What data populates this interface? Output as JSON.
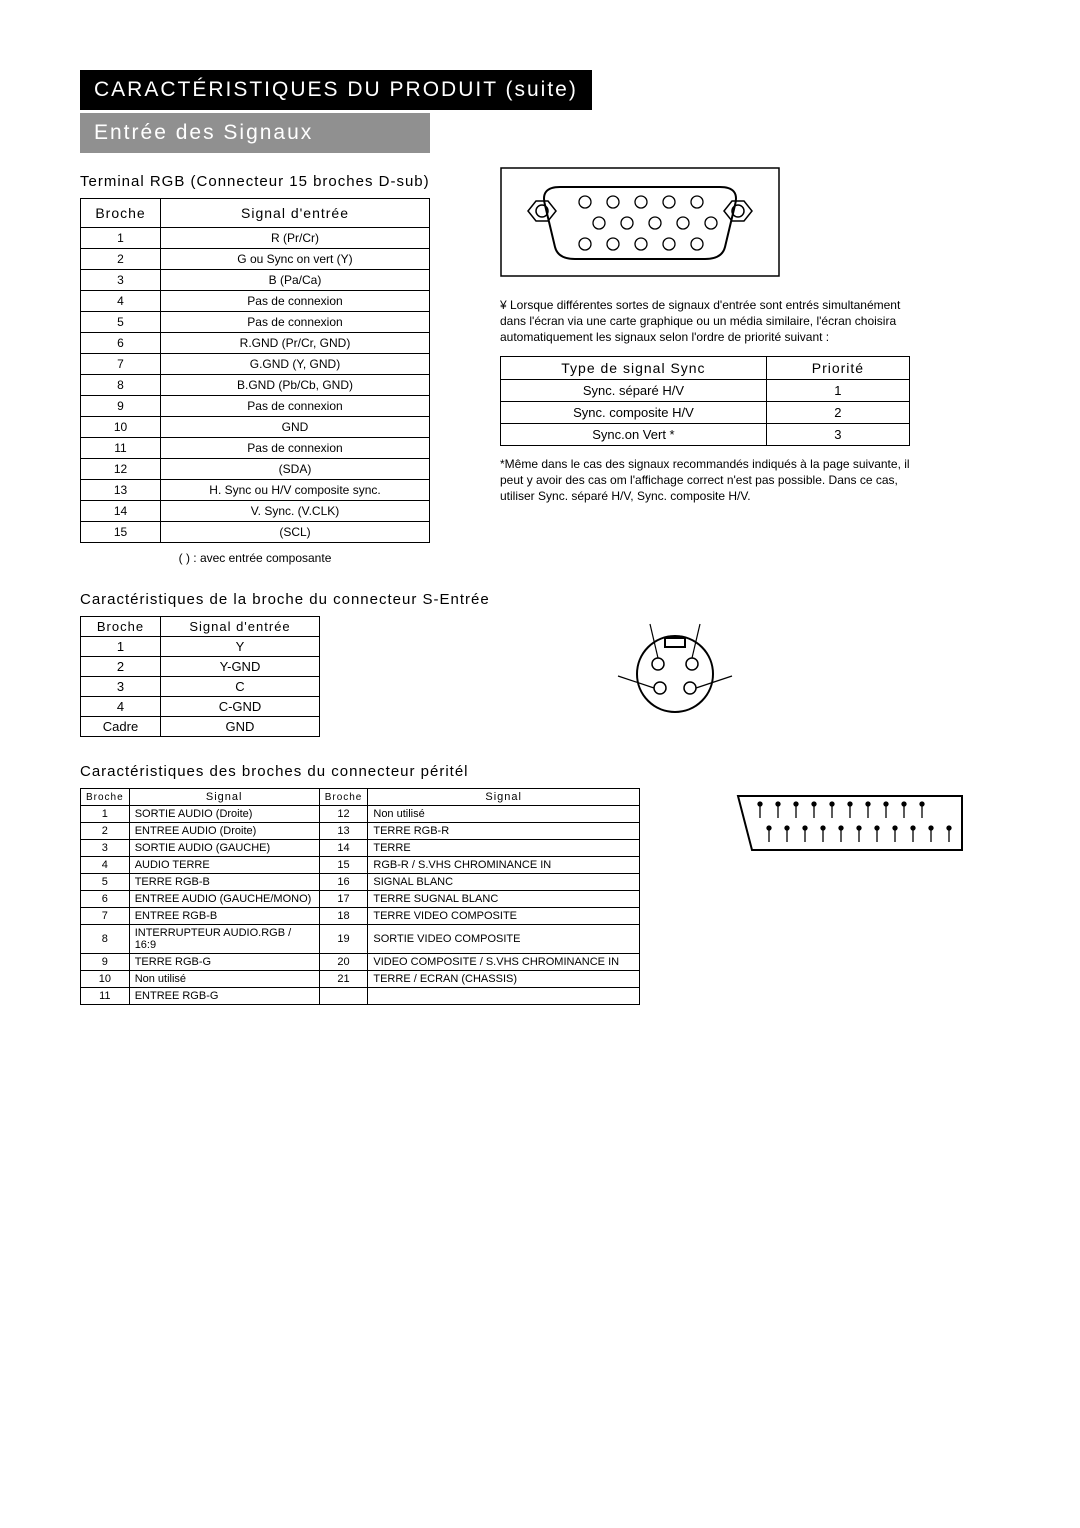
{
  "titleBar": "CARACTÉRISTIQUES DU PRODUIT (suite)",
  "subtitleBar": "Entrée des Signaux",
  "rgbSection": {
    "heading": "Terminal RGB (Connecteur 15 broches D-sub)",
    "headers": {
      "pin": "Broche",
      "signal": "Signal d'entrée"
    },
    "rows": [
      {
        "pin": "1",
        "signal": "R (Pr/Cr)"
      },
      {
        "pin": "2",
        "signal": "G ou Sync on vert (Y)"
      },
      {
        "pin": "3",
        "signal": "B (Pa/Ca)"
      },
      {
        "pin": "4",
        "signal": "Pas de connexion"
      },
      {
        "pin": "5",
        "signal": "Pas de connexion"
      },
      {
        "pin": "6",
        "signal": "R.GND (Pr/Cr, GND)"
      },
      {
        "pin": "7",
        "signal": "G.GND (Y, GND)"
      },
      {
        "pin": "8",
        "signal": "B.GND (Pb/Cb, GND)"
      },
      {
        "pin": "9",
        "signal": "Pas de connexion"
      },
      {
        "pin": "10",
        "signal": "GND"
      },
      {
        "pin": "11",
        "signal": "Pas de connexion"
      },
      {
        "pin": "12",
        "signal": "(SDA)"
      },
      {
        "pin": "13",
        "signal": "H. Sync ou H/V composite sync."
      },
      {
        "pin": "14",
        "signal": "V. Sync. (V.CLK)"
      },
      {
        "pin": "15",
        "signal": "(SCL)"
      }
    ],
    "footnote": "(  ) : avec entrée composante"
  },
  "syncNote1": "¥ Lorsque différentes sortes de signaux d'entrée sont entrés simultanément dans l'écran via une carte graphique ou un média similaire, l'écran choisira automatiquement les signaux selon l'ordre de priorité suivant :",
  "syncTable": {
    "headers": {
      "type": "Type de signal Sync",
      "priority": "Priorité"
    },
    "rows": [
      {
        "type": "Sync. séparé H/V",
        "priority": "1"
      },
      {
        "type": "Sync. composite H/V",
        "priority": "2"
      },
      {
        "type": "Sync.on Vert *",
        "priority": "3"
      }
    ]
  },
  "syncNote2": "*Même dans le cas des signaux recommandés indiqués à la page suivante, il peut y avoir des cas om l'affichage correct n'est pas possible. Dans ce cas, utiliser Sync. séparé H/V, Sync. composite H/V.",
  "svideoSection": {
    "heading": "Caractéristiques de la broche du connecteur S-Entrée",
    "headers": {
      "pin": "Broche",
      "signal": "Signal d'entrée"
    },
    "rows": [
      {
        "pin": "1",
        "signal": "Y"
      },
      {
        "pin": "2",
        "signal": "Y-GND"
      },
      {
        "pin": "3",
        "signal": "C"
      },
      {
        "pin": "4",
        "signal": "C-GND"
      },
      {
        "pin": "Cadre",
        "signal": "GND"
      }
    ]
  },
  "peritelSection": {
    "heading": "Caractéristiques des broches du connecteur péritél",
    "headers": {
      "pin": "Broche",
      "signal": "Signal"
    },
    "rows": [
      {
        "p1": "1",
        "s1": "SORTIE AUDIO (Droite)",
        "p2": "12",
        "s2": "Non utilisé"
      },
      {
        "p1": "2",
        "s1": "ENTREE AUDIO (Droite)",
        "p2": "13",
        "s2": "TERRE RGB-R"
      },
      {
        "p1": "3",
        "s1": "SORTIE AUDIO (GAUCHE)",
        "p2": "14",
        "s2": "TERRE"
      },
      {
        "p1": "4",
        "s1": "AUDIO TERRE",
        "p2": "15",
        "s2": "RGB-R / S.VHS CHROMINANCE IN"
      },
      {
        "p1": "5",
        "s1": "TERRE RGB-B",
        "p2": "16",
        "s2": "SIGNAL BLANC"
      },
      {
        "p1": "6",
        "s1": "ENTREE AUDIO (GAUCHE/MONO)",
        "p2": "17",
        "s2": "TERRE SUGNAL BLANC"
      },
      {
        "p1": "7",
        "s1": "ENTREE RGB-B",
        "p2": "18",
        "s2": "TERRE VIDEO COMPOSITE"
      },
      {
        "p1": "8",
        "s1": "INTERRUPTEUR AUDIO.RGB / 16:9",
        "p2": "19",
        "s2": "SORTIE VIDEO COMPOSITE"
      },
      {
        "p1": "9",
        "s1": "TERRE RGB-G",
        "p2": "20",
        "s2": "VIDEO COMPOSITE / S.VHS CHROMINANCE IN"
      },
      {
        "p1": "10",
        "s1": "Non utilisé",
        "p2": "21",
        "s2": "TERRE / ECRAN (CHASSIS)"
      },
      {
        "p1": "11",
        "s1": "ENTREE RGB-G",
        "p2": "",
        "s2": ""
      }
    ]
  }
}
